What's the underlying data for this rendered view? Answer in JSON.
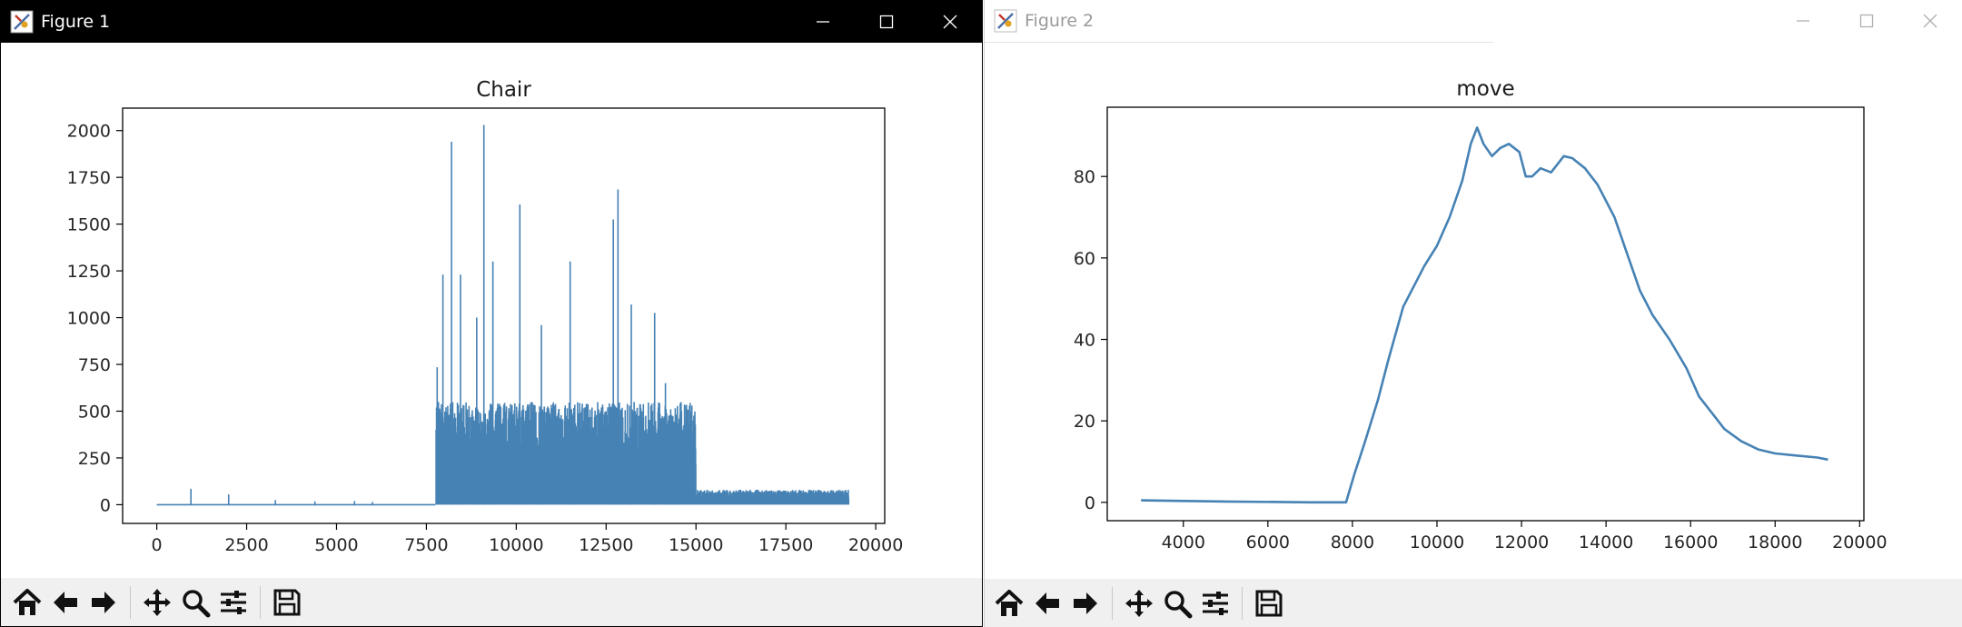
{
  "window1": {
    "title": "Figure 1",
    "toolbar": [
      "home-icon",
      "back-icon",
      "forward-icon",
      "pan-icon",
      "zoom-icon",
      "configure-icon",
      "save-icon"
    ]
  },
  "window2": {
    "title": "Figure 2",
    "toolbar": [
      "home-icon",
      "back-icon",
      "forward-icon",
      "pan-icon",
      "zoom-icon",
      "configure-icon",
      "save-icon"
    ]
  },
  "colors": {
    "series": "#4682b4",
    "titlebar_active": "#000000",
    "toolbar_bg": "#f0f0f0"
  },
  "chart_data": [
    {
      "type": "line",
      "title": "Chair",
      "xlabel": "",
      "ylabel": "",
      "xlim": [
        -950,
        20250
      ],
      "ylim": [
        -100,
        2120
      ],
      "xticks": [
        0,
        2500,
        5000,
        7500,
        10000,
        12500,
        15000,
        17500,
        20000
      ],
      "yticks": [
        0,
        250,
        500,
        750,
        1000,
        1250,
        1500,
        1750,
        2000
      ],
      "grid": false,
      "legend": "none",
      "series": [
        {
          "x_start": 0,
          "x_end": 19250,
          "baseline_segments": [
            [
              0,
              7750,
              0
            ],
            [
              15050,
              19250,
              60
            ]
          ],
          "noise_bands": [
            {
              "from": 7770,
              "to": 15000,
              "min": 0,
              "typical_high": 550
            },
            {
              "from": 15000,
              "to": 19250,
              "min": 0,
              "typical_high": 80
            }
          ],
          "spikes": [
            [
              950,
              85
            ],
            [
              2000,
              55
            ],
            [
              3300,
              25
            ],
            [
              4400,
              18
            ],
            [
              5500,
              20
            ],
            [
              6000,
              15
            ],
            [
              7800,
              735
            ],
            [
              7960,
              1230
            ],
            [
              8200,
              1940
            ],
            [
              8450,
              1230
            ],
            [
              8900,
              1000
            ],
            [
              9100,
              2030
            ],
            [
              9350,
              1300
            ],
            [
              10100,
              1605
            ],
            [
              10700,
              960
            ],
            [
              11500,
              1300
            ],
            [
              12700,
              1525
            ],
            [
              12830,
              1685
            ],
            [
              13200,
              1070
            ],
            [
              13850,
              1025
            ],
            [
              14150,
              650
            ],
            [
              14400,
              290
            ]
          ]
        }
      ]
    },
    {
      "type": "line",
      "title": "move",
      "xlabel": "",
      "ylabel": "",
      "xlim": [
        2200,
        20100
      ],
      "ylim": [
        -4.5,
        97
      ],
      "xticks": [
        4000,
        6000,
        8000,
        10000,
        12000,
        14000,
        16000,
        18000,
        20000
      ],
      "yticks": [
        0,
        20,
        40,
        60,
        80
      ],
      "grid": false,
      "legend": "none",
      "series": [
        {
          "x": [
            3000,
            5000,
            7000,
            7850,
            8050,
            8300,
            8600,
            8850,
            9200,
            9500,
            9700,
            10000,
            10300,
            10600,
            10800,
            10950,
            11100,
            11300,
            11500,
            11700,
            11950,
            12100,
            12250,
            12450,
            12700,
            12850,
            13000,
            13200,
            13500,
            13800,
            14200,
            14500,
            14800,
            15100,
            15500,
            15900,
            16200,
            16500,
            16800,
            17200,
            17600,
            18000,
            18500,
            19000,
            19250
          ],
          "y": [
            0.5,
            0.2,
            0,
            0,
            7,
            15,
            25,
            35,
            48,
            54,
            58,
            63,
            70,
            79,
            88,
            92,
            88,
            85,
            87,
            88,
            86,
            80,
            80,
            82,
            81,
            83,
            85,
            84.5,
            82,
            78,
            70,
            61,
            52,
            46,
            40,
            33,
            26,
            22,
            18,
            15,
            13,
            12,
            11.5,
            11,
            10.5
          ]
        }
      ]
    }
  ]
}
